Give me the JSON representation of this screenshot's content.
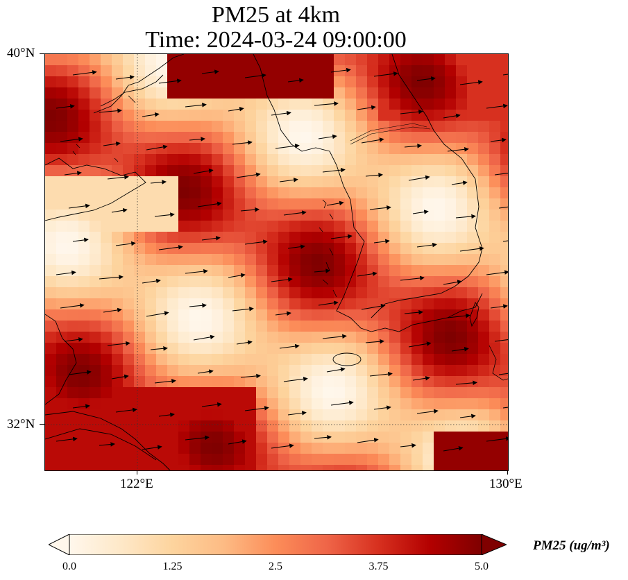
{
  "title": {
    "line1": "PM25 at 4km",
    "line2": "Time: 2024-03-24 09:00:00"
  },
  "axes": {
    "lat_ticks": [
      {
        "label": "40°N",
        "lat": 40
      },
      {
        "label": "32°N",
        "lat": 32
      }
    ],
    "lon_ticks": [
      {
        "label": "122°E",
        "lon": 122
      },
      {
        "label": "130°E",
        "lon": 130
      }
    ],
    "lon_range": [
      120,
      130
    ],
    "lat_range": [
      31,
      40
    ],
    "gridlines": "dotted"
  },
  "colorbar": {
    "label": "PM25 (ug/m³)",
    "cmap": "OrRd",
    "min": 0.0,
    "max": 5.0,
    "extend": "both",
    "ticks": [
      "0.0",
      "1.25",
      "2.5",
      "3.75",
      "5.0"
    ],
    "colors": [
      "#fff7ec",
      "#fee8c8",
      "#fdd49e",
      "#fdbb84",
      "#fc8d59",
      "#ef6548",
      "#d7301f",
      "#b30000",
      "#7f0000"
    ]
  },
  "map": {
    "type": "filled-field-with-wind-vectors",
    "field": "PM25",
    "level": "4km",
    "wind_vectors": "westerly, pointing east to east-northeast"
  }
}
